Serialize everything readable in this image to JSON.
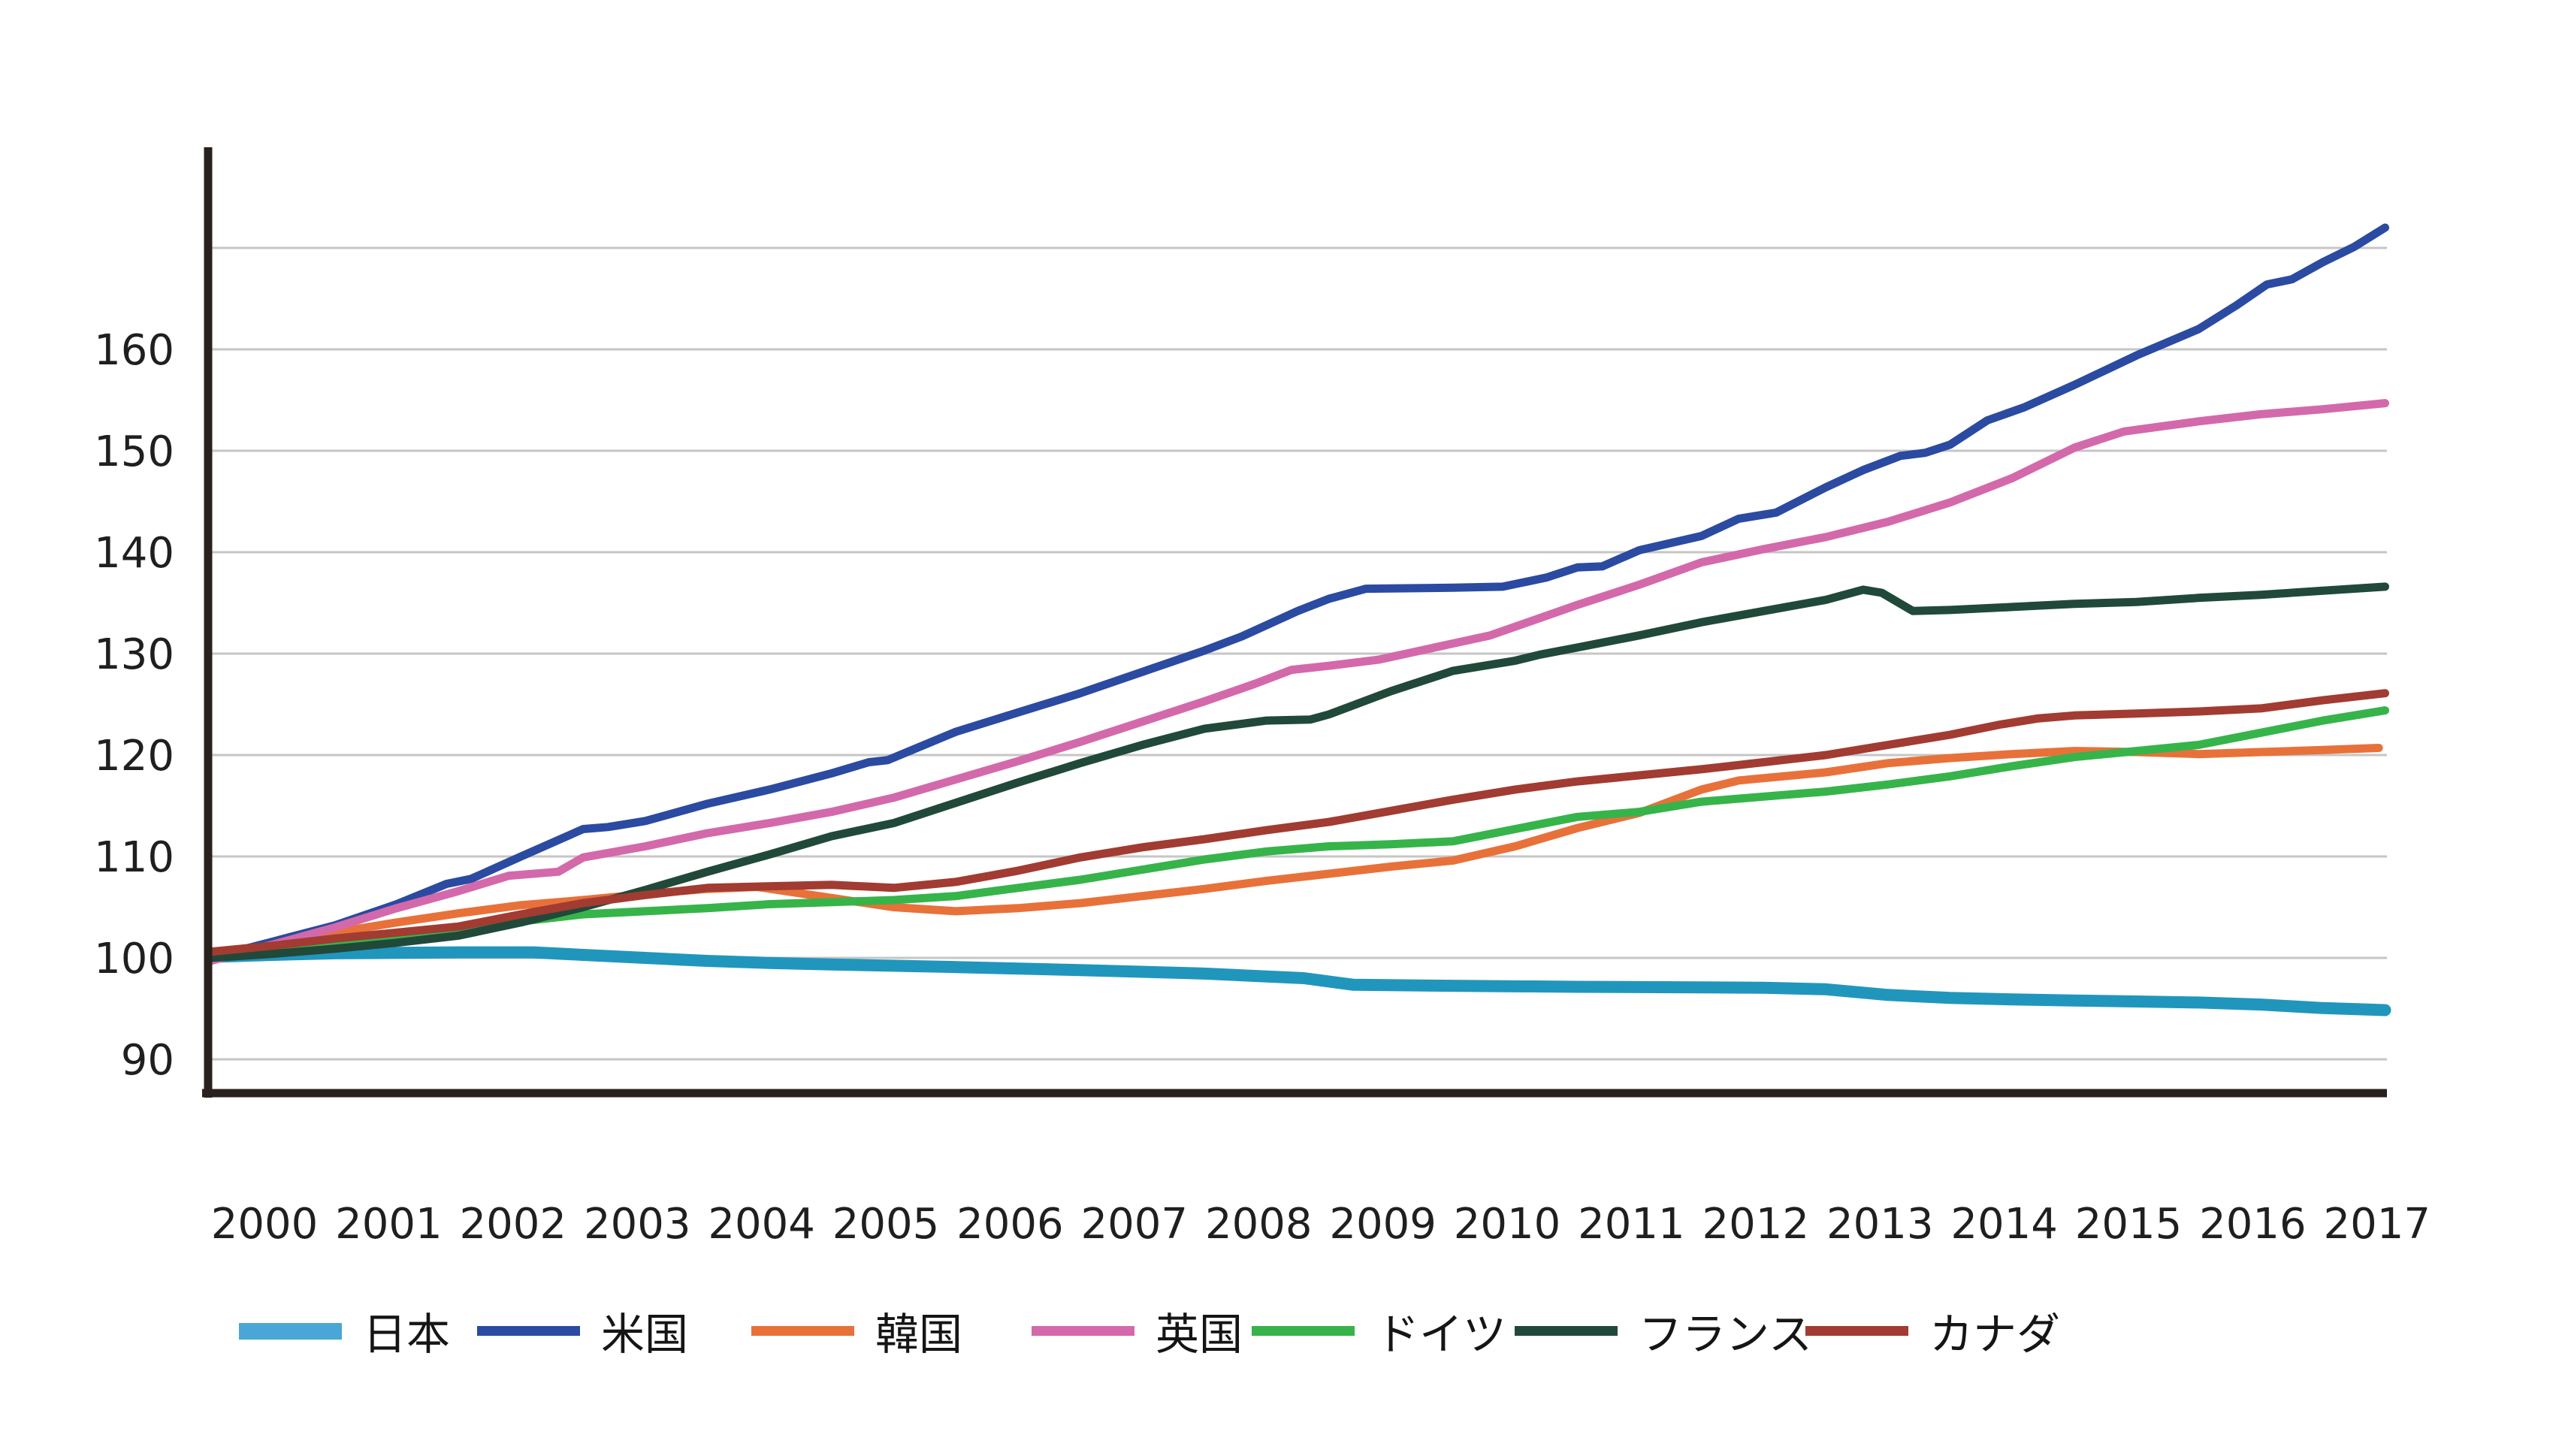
{
  "page": {
    "background": "#ffffff",
    "title": ""
  },
  "chart_data": {
    "type": "line",
    "title": "",
    "xlabel": "",
    "ylabel": "",
    "x_tick_labels": [
      "2000",
      "2001",
      "2002",
      "2003",
      "2004",
      "2005",
      "2006",
      "2007",
      "2008",
      "2009",
      "2010",
      "2011",
      "2012",
      "2013",
      "2014",
      "2015",
      "2016",
      "2017"
    ],
    "y_tick_labels": [
      "160",
      "150",
      "140",
      "130",
      "120",
      "110",
      "100",
      "90"
    ],
    "y_gridlines": [
      90,
      100,
      110,
      120,
      130,
      140,
      150,
      160,
      170
    ],
    "xlim": [
      2000,
      2017.6
    ],
    "ylim": [
      86.5,
      180
    ],
    "grid": "horizontal-only",
    "legend_position": "bottom",
    "colors": {
      "axis": "#29211d",
      "grid": "#c6c6c6",
      "tick_text": "#1f1f1f",
      "background": "#ffffff"
    },
    "series": [
      {
        "name": "日本",
        "id": "japan",
        "color": "#2196bd",
        "legend_color": "#48a7d6",
        "line_width": 16,
        "data": [
          [
            2000,
            100.1
          ],
          [
            2000.5,
            100.3
          ],
          [
            2001,
            100.45
          ],
          [
            2001.5,
            100.5
          ],
          [
            2002,
            100.55
          ],
          [
            2002.6,
            100.55
          ],
          [
            2003,
            100.3
          ],
          [
            2003.5,
            100.0
          ],
          [
            2004,
            99.7
          ],
          [
            2004.5,
            99.5
          ],
          [
            2005,
            99.35
          ],
          [
            2006,
            99.1
          ],
          [
            2007,
            98.8
          ],
          [
            2008,
            98.45
          ],
          [
            2008.8,
            98.0
          ],
          [
            2009.2,
            97.35
          ],
          [
            2010,
            97.25
          ],
          [
            2011,
            97.15
          ],
          [
            2012,
            97.1
          ],
          [
            2012.5,
            97.05
          ],
          [
            2013,
            96.9
          ],
          [
            2013.5,
            96.35
          ],
          [
            2014,
            96.05
          ],
          [
            2014.5,
            95.9
          ],
          [
            2015,
            95.8
          ],
          [
            2015.5,
            95.7
          ],
          [
            2016,
            95.6
          ],
          [
            2016.5,
            95.4
          ],
          [
            2017,
            95.05
          ],
          [
            2017.5,
            94.85
          ]
        ]
      },
      {
        "name": "米国",
        "id": "us",
        "color": "#2b4aa1",
        "legend_color": "#2b4aa1",
        "line_width": 11,
        "data": [
          [
            2000,
            100
          ],
          [
            2000.5,
            101.6
          ],
          [
            2001,
            103.2
          ],
          [
            2001.5,
            105.3
          ],
          [
            2001.9,
            107.3
          ],
          [
            2002.1,
            107.8
          ],
          [
            2002.5,
            110.0
          ],
          [
            2003,
            112.7
          ],
          [
            2003.2,
            112.9
          ],
          [
            2003.5,
            113.5
          ],
          [
            2004,
            115.2
          ],
          [
            2004.5,
            116.6
          ],
          [
            2005,
            118.2
          ],
          [
            2005.3,
            119.3
          ],
          [
            2005.45,
            119.5
          ],
          [
            2006,
            122.3
          ],
          [
            2006.5,
            124.2
          ],
          [
            2007,
            126.1
          ],
          [
            2007.5,
            128.2
          ],
          [
            2008,
            130.3
          ],
          [
            2008.3,
            131.7
          ],
          [
            2008.75,
            134.2
          ],
          [
            2009,
            135.4
          ],
          [
            2009.3,
            136.4
          ],
          [
            2010,
            136.5
          ],
          [
            2010.4,
            136.6
          ],
          [
            2010.75,
            137.5
          ],
          [
            2011,
            138.5
          ],
          [
            2011.2,
            138.6
          ],
          [
            2011.5,
            140.2
          ],
          [
            2012,
            141.6
          ],
          [
            2012.3,
            143.3
          ],
          [
            2012.6,
            143.9
          ],
          [
            2013,
            146.4
          ],
          [
            2013.3,
            148.1
          ],
          [
            2013.6,
            149.5
          ],
          [
            2013.8,
            149.8
          ],
          [
            2014,
            150.6
          ],
          [
            2014.3,
            153.0
          ],
          [
            2014.6,
            154.3
          ],
          [
            2015,
            156.5
          ],
          [
            2015.5,
            159.4
          ],
          [
            2016,
            162.0
          ],
          [
            2016.3,
            164.3
          ],
          [
            2016.55,
            166.4
          ],
          [
            2016.75,
            166.9
          ],
          [
            2017,
            168.6
          ],
          [
            2017.25,
            170.1
          ],
          [
            2017.5,
            172.0
          ]
        ]
      },
      {
        "name": "韓国",
        "id": "korea",
        "color": "#e8713a",
        "legend_color": "#e8713a",
        "line_width": 11,
        "data": [
          [
            2000,
            100
          ],
          [
            2000.5,
            101.3
          ],
          [
            2001,
            102.5
          ],
          [
            2001.5,
            103.5
          ],
          [
            2002,
            104.4
          ],
          [
            2002.5,
            105.2
          ],
          [
            2003,
            105.7
          ],
          [
            2003.5,
            106.3
          ],
          [
            2004,
            106.8
          ],
          [
            2004.4,
            107.0
          ],
          [
            2005,
            105.9
          ],
          [
            2005.5,
            105.0
          ],
          [
            2006,
            104.6
          ],
          [
            2006.5,
            104.9
          ],
          [
            2007,
            105.4
          ],
          [
            2007.5,
            106.1
          ],
          [
            2008,
            106.8
          ],
          [
            2008.5,
            107.6
          ],
          [
            2009,
            108.3
          ],
          [
            2009.5,
            109.0
          ],
          [
            2010,
            109.6
          ],
          [
            2010.5,
            111.0
          ],
          [
            2011,
            112.8
          ],
          [
            2011.5,
            114.3
          ],
          [
            2012,
            116.6
          ],
          [
            2012.3,
            117.5
          ],
          [
            2013,
            118.3
          ],
          [
            2013.5,
            119.2
          ],
          [
            2014,
            119.7
          ],
          [
            2014.5,
            120.1
          ],
          [
            2015,
            120.4
          ],
          [
            2015.5,
            120.3
          ],
          [
            2016,
            120.1
          ],
          [
            2016.5,
            120.3
          ],
          [
            2017,
            120.5
          ],
          [
            2017.45,
            120.7
          ]
        ]
      },
      {
        "name": "英国",
        "id": "uk",
        "color": "#d369ab",
        "legend_color": "#d369ab",
        "line_width": 11,
        "data": [
          [
            2000,
            99.7
          ],
          [
            2000.5,
            101.3
          ],
          [
            2001,
            103.0
          ],
          [
            2001.5,
            104.9
          ],
          [
            2002,
            106.6
          ],
          [
            2002.4,
            108.1
          ],
          [
            2002.8,
            108.5
          ],
          [
            2003,
            109.9
          ],
          [
            2003.5,
            111.0
          ],
          [
            2004,
            112.3
          ],
          [
            2004.5,
            113.3
          ],
          [
            2005,
            114.4
          ],
          [
            2005.5,
            115.8
          ],
          [
            2006,
            117.6
          ],
          [
            2006.5,
            119.4
          ],
          [
            2007,
            121.3
          ],
          [
            2007.5,
            123.3
          ],
          [
            2008,
            125.3
          ],
          [
            2008.4,
            127.0
          ],
          [
            2008.7,
            128.4
          ],
          [
            2009,
            128.8
          ],
          [
            2009.4,
            129.4
          ],
          [
            2010,
            131.0
          ],
          [
            2010.3,
            131.8
          ],
          [
            2011,
            134.8
          ],
          [
            2011.5,
            136.8
          ],
          [
            2012,
            139.0
          ],
          [
            2012.5,
            140.3
          ],
          [
            2013,
            141.5
          ],
          [
            2013.5,
            143.0
          ],
          [
            2014,
            144.9
          ],
          [
            2014.5,
            147.3
          ],
          [
            2015,
            150.3
          ],
          [
            2015.4,
            151.9
          ],
          [
            2016,
            152.9
          ],
          [
            2016.5,
            153.6
          ],
          [
            2017,
            154.1
          ],
          [
            2017.5,
            154.7
          ]
        ]
      },
      {
        "name": "ドイツ",
        "id": "germany",
        "color": "#36b44a",
        "legend_color": "#36b44a",
        "line_width": 11,
        "data": [
          [
            2000,
            100
          ],
          [
            2000.5,
            100.7
          ],
          [
            2001,
            101.3
          ],
          [
            2001.5,
            102.1
          ],
          [
            2002,
            102.8
          ],
          [
            2002.5,
            103.6
          ],
          [
            2003,
            104.3
          ],
          [
            2003.5,
            104.6
          ],
          [
            2004,
            104.9
          ],
          [
            2004.5,
            105.3
          ],
          [
            2005,
            105.5
          ],
          [
            2005.5,
            105.7
          ],
          [
            2006,
            106.1
          ],
          [
            2006.5,
            106.9
          ],
          [
            2007,
            107.7
          ],
          [
            2007.5,
            108.7
          ],
          [
            2008,
            109.7
          ],
          [
            2008.5,
            110.5
          ],
          [
            2009,
            111.0
          ],
          [
            2009.5,
            111.2
          ],
          [
            2010,
            111.5
          ],
          [
            2010.5,
            112.7
          ],
          [
            2011,
            113.9
          ],
          [
            2011.5,
            114.4
          ],
          [
            2012,
            115.4
          ],
          [
            2012.5,
            115.9
          ],
          [
            2013,
            116.4
          ],
          [
            2013.5,
            117.1
          ],
          [
            2014,
            117.9
          ],
          [
            2014.5,
            118.9
          ],
          [
            2015,
            119.8
          ],
          [
            2015.5,
            120.4
          ],
          [
            2016,
            121.0
          ],
          [
            2016.5,
            122.2
          ],
          [
            2017,
            123.4
          ],
          [
            2017.5,
            124.4
          ]
        ]
      },
      {
        "name": "フランス",
        "id": "france",
        "color": "#20493a",
        "legend_color": "#20493a",
        "line_width": 11,
        "data": [
          [
            2000,
            100
          ],
          [
            2000.5,
            100.4
          ],
          [
            2001,
            100.9
          ],
          [
            2001.5,
            101.5
          ],
          [
            2002,
            102.2
          ],
          [
            2002.5,
            103.5
          ],
          [
            2003,
            105.0
          ],
          [
            2003.5,
            106.7
          ],
          [
            2004,
            108.5
          ],
          [
            2004.5,
            110.2
          ],
          [
            2005,
            112.0
          ],
          [
            2005.5,
            113.3
          ],
          [
            2006,
            115.3
          ],
          [
            2006.5,
            117.3
          ],
          [
            2007,
            119.2
          ],
          [
            2007.5,
            121.0
          ],
          [
            2008,
            122.6
          ],
          [
            2008.5,
            123.4
          ],
          [
            2008.85,
            123.5
          ],
          [
            2009,
            124.0
          ],
          [
            2009.5,
            126.3
          ],
          [
            2010,
            128.3
          ],
          [
            2010.5,
            129.3
          ],
          [
            2010.7,
            129.9
          ],
          [
            2011,
            130.6
          ],
          [
            2011.5,
            131.8
          ],
          [
            2012,
            133.1
          ],
          [
            2012.5,
            134.2
          ],
          [
            2013,
            135.3
          ],
          [
            2013.3,
            136.3
          ],
          [
            2013.45,
            136.0
          ],
          [
            2013.7,
            134.2
          ],
          [
            2014,
            134.3
          ],
          [
            2014.5,
            134.6
          ],
          [
            2015,
            134.9
          ],
          [
            2015.5,
            135.1
          ],
          [
            2016,
            135.5
          ],
          [
            2016.5,
            135.8
          ],
          [
            2017,
            136.2
          ],
          [
            2017.5,
            136.6
          ]
        ]
      },
      {
        "name": "カナダ",
        "id": "canada",
        "color": "#a23b31",
        "legend_color": "#a23b31",
        "line_width": 11,
        "data": [
          [
            2000,
            100.6
          ],
          [
            2000.5,
            101.2
          ],
          [
            2001,
            101.9
          ],
          [
            2001.5,
            102.5
          ],
          [
            2002,
            103.1
          ],
          [
            2002.5,
            104.3
          ],
          [
            2003,
            105.4
          ],
          [
            2003.5,
            106.2
          ],
          [
            2004,
            106.9
          ],
          [
            2004.3,
            107.0
          ],
          [
            2005,
            107.2
          ],
          [
            2005.5,
            106.9
          ],
          [
            2006,
            107.5
          ],
          [
            2006.5,
            108.6
          ],
          [
            2007,
            109.9
          ],
          [
            2007.5,
            110.9
          ],
          [
            2008,
            111.7
          ],
          [
            2008.5,
            112.6
          ],
          [
            2009,
            113.4
          ],
          [
            2009.5,
            114.5
          ],
          [
            2010,
            115.6
          ],
          [
            2010.5,
            116.6
          ],
          [
            2011,
            117.4
          ],
          [
            2011.5,
            118.0
          ],
          [
            2012,
            118.6
          ],
          [
            2012.5,
            119.3
          ],
          [
            2013,
            120.0
          ],
          [
            2013.5,
            121.0
          ],
          [
            2014,
            122.0
          ],
          [
            2014.4,
            123.0
          ],
          [
            2014.7,
            123.6
          ],
          [
            2015,
            123.9
          ],
          [
            2015.5,
            124.1
          ],
          [
            2016,
            124.3
          ],
          [
            2016.5,
            124.6
          ],
          [
            2017,
            125.4
          ],
          [
            2017.5,
            126.1
          ]
        ]
      }
    ]
  }
}
